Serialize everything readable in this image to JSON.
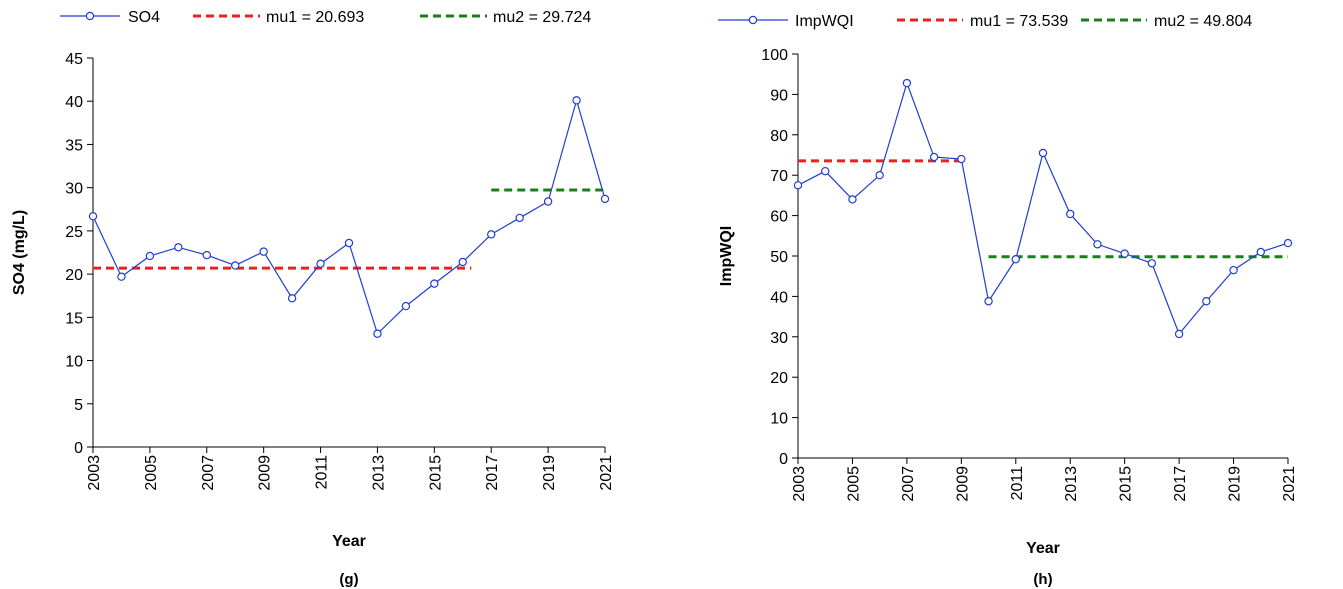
{
  "chart_data": [
    {
      "type": "line",
      "panel_label": "(g)",
      "xlabel": "Year",
      "ylabel": "SO4 (mg/L)",
      "xlim": [
        2003,
        2021
      ],
      "ylim": [
        0,
        45
      ],
      "x_ticks": [
        "2003",
        "2005",
        "2007",
        "2009",
        "2011",
        "2013",
        "2015",
        "2017",
        "2019",
        "2021"
      ],
      "y_ticks": [
        "0",
        "5",
        "10",
        "15",
        "20",
        "25",
        "30",
        "35",
        "40",
        "45"
      ],
      "series": [
        {
          "name": "SO4",
          "color": "#1f3fd0",
          "marker": "circle",
          "x": [
            2003,
            2004,
            2005,
            2006,
            2007,
            2008,
            2009,
            2010,
            2011,
            2012,
            2013,
            2014,
            2015,
            2016,
            2017,
            2018,
            2019,
            2020,
            2021
          ],
          "y": [
            26.7,
            19.7,
            22.1,
            23.1,
            22.2,
            21.0,
            22.6,
            17.2,
            21.2,
            23.6,
            13.1,
            16.3,
            18.9,
            21.4,
            24.6,
            26.5,
            28.4,
            40.1,
            28.7
          ]
        }
      ],
      "segments": [
        {
          "name": "mu1 = 20.693",
          "color": "#ee2020",
          "value": 20.693,
          "x_start": 2003,
          "x_end": 2016.3
        },
        {
          "name": "mu2 = 29.724",
          "color": "#1a7f1a",
          "value": 29.724,
          "x_start": 2017,
          "x_end": 2021
        }
      ],
      "legend": [
        "SO4",
        "mu1 = 20.693",
        "mu2 = 29.724"
      ],
      "legend_position": "top"
    },
    {
      "type": "line",
      "panel_label": "(h)",
      "xlabel": "Year",
      "ylabel": "ImpWQI",
      "xlim": [
        2003,
        2021
      ],
      "ylim": [
        0,
        100
      ],
      "x_ticks": [
        "2003",
        "2005",
        "2007",
        "2009",
        "2011",
        "2013",
        "2015",
        "2017",
        "2019",
        "2021"
      ],
      "y_ticks": [
        "0",
        "10",
        "20",
        "30",
        "40",
        "50",
        "60",
        "70",
        "80",
        "90",
        "100"
      ],
      "series": [
        {
          "name": "ImpWQI",
          "color": "#1f3fd0",
          "marker": "circle",
          "x": [
            2003,
            2004,
            2005,
            2006,
            2007,
            2008,
            2009,
            2010,
            2011,
            2012,
            2013,
            2014,
            2015,
            2016,
            2017,
            2018,
            2019,
            2020,
            2021
          ],
          "y": [
            67.5,
            71.0,
            64.0,
            70.0,
            92.8,
            74.5,
            74.0,
            38.8,
            49.2,
            75.5,
            60.4,
            52.9,
            50.6,
            48.2,
            30.7,
            38.8,
            46.5,
            51.0,
            53.2
          ]
        }
      ],
      "segments": [
        {
          "name": "mu1 = 73.539",
          "color": "#ee2020",
          "value": 73.539,
          "x_start": 2003,
          "x_end": 2009
        },
        {
          "name": "mu2 = 49.804",
          "color": "#1a7f1a",
          "value": 49.804,
          "x_start": 2010,
          "x_end": 2021
        }
      ],
      "legend": [
        "ImpWQI",
        "mu1 = 73.539",
        "mu2 = 49.804"
      ],
      "legend_position": "top"
    }
  ]
}
